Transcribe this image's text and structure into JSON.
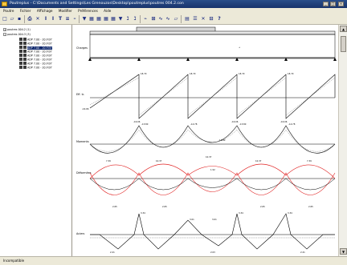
{
  "window": {
    "title": "Poutreplus - C:\\Documents and Settings\\Les Grenouzos\\Desktop\\poutreplus\\poutres 004.2.con",
    "buttons": [
      "_",
      "□",
      "×"
    ]
  },
  "menu": [
    "Poutre",
    "Fichier",
    "Affichage",
    "Modifier",
    "Préférences",
    "Aide"
  ],
  "tree": {
    "items": [
      {
        "label": "poutres 004.2 (1)",
        "level": 0
      },
      {
        "label": "poutres 004.3 (3)",
        "level": 0
      },
      {
        "label": "ADP 7.00 - 20.FI37",
        "level": 1
      },
      {
        "label": "ADP 7.00 - 20.FI37",
        "level": 1
      },
      {
        "label": "ADP 7.00 - 20.FI37",
        "level": 1,
        "selected": true
      },
      {
        "label": "ADP 7.00 - 20.FI37",
        "level": 1
      },
      {
        "label": "ADP 7.00 - 20.FI37",
        "level": 1
      },
      {
        "label": "ADP 7.00 - 20.FI37",
        "level": 1
      },
      {
        "label": "ADP 7.00 - 20.FI37",
        "level": 1
      },
      {
        "label": "ADP 7.00 - 20.FI37",
        "level": 1
      }
    ]
  },
  "diagram": {
    "section_labels": {
      "charges": "Charges",
      "effort": "Eff. tr.",
      "moments": "Moments",
      "combinaisons": "Déformées",
      "aciers": "Aciers"
    },
    "shear_values": [
      "18.70",
      "-16.06",
      "18.70",
      "-16.06",
      "18.70",
      "-16.06",
      "18.70",
      "-16.06"
    ],
    "moment_values": [
      "-13.80",
      "-14.78",
      "-13.80",
      "-14.78",
      "-13.80",
      "7.39",
      "10.37",
      "10.37",
      "10.37",
      "7.39"
    ],
    "deflection_values": [
      "2.65",
      "2.65",
      "2.65",
      "1.52",
      "2.65"
    ],
    "steel_values": [
      "3.34",
      "3.01",
      "3.34",
      "3.01",
      "3.34",
      "2.21",
      "2.03",
      "2.21"
    ],
    "colors": {
      "line": "#000000",
      "envelope": "#e02020",
      "dashed": "#555555"
    }
  },
  "statusbar": {
    "text": "Incompatible"
  }
}
